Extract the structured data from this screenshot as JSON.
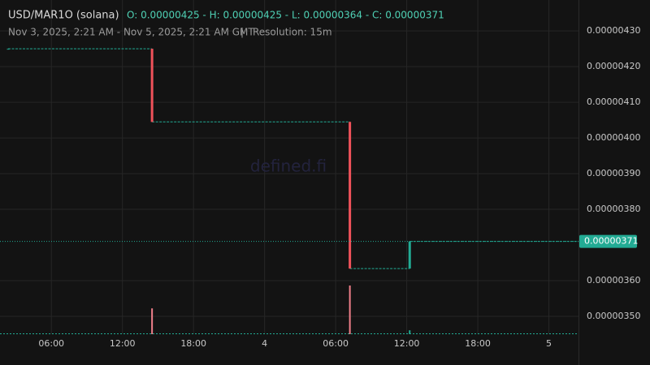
{
  "chart_data": {
    "type": "candlestick",
    "pair": "USD/MAR1O (solana)",
    "ohlc": "O: 0.00000425 - H: 0.00000425 - L: 0.00000364 - C: 0.00000371",
    "range": "Nov 3, 2025, 2:21 AM - Nov 5, 2025, 2:21 AM GMT",
    "separator": "|",
    "resolution": "Resolution: 15m",
    "watermark": "defined.fi",
    "last_price_label": "0.00000371",
    "up_color": "#22ab94",
    "down_color": "#f0525a",
    "x": [
      2.35,
      14.5,
      31.2,
      36.25
    ],
    "open": [
      4.25e-06,
      4.25e-06,
      4.045e-06,
      3.634e-06
    ],
    "high": [
      4.25e-06,
      4.25e-06,
      4.045e-06,
      3.71e-06
    ],
    "low": [
      4.25e-06,
      4.045e-06,
      3.634e-06,
      3.634e-06
    ],
    "close": [
      4.25e-06,
      4.045e-06,
      3.634e-06,
      3.71e-06
    ],
    "volume": [
      0,
      53,
      100,
      8
    ],
    "xlim": [
      2.35,
      50.5
    ],
    "ylim": [
      3.45e-06,
      4.364e-06
    ],
    "xticks": [
      {
        "value": 6,
        "label": "06:00"
      },
      {
        "value": 12,
        "label": "12:00"
      },
      {
        "value": 18,
        "label": "18:00"
      },
      {
        "value": 24,
        "label": "4"
      },
      {
        "value": 30,
        "label": "06:00"
      },
      {
        "value": 36,
        "label": "12:00"
      },
      {
        "value": 42,
        "label": "18:00"
      },
      {
        "value": 48,
        "label": "5"
      }
    ],
    "yticks": [
      {
        "value": 3.5e-06,
        "label": "0.00000350"
      },
      {
        "value": 3.6e-06,
        "label": "0.00000360"
      },
      {
        "value": 3.8e-06,
        "label": "0.00000380"
      },
      {
        "value": 3.9e-06,
        "label": "0.00000390"
      },
      {
        "value": 4e-06,
        "label": "0.00000400"
      },
      {
        "value": 4.1e-06,
        "label": "0.00000410"
      },
      {
        "value": 4.2e-06,
        "label": "0.00000420"
      },
      {
        "value": 4.3e-06,
        "label": "0.00000430"
      }
    ],
    "grid": true
  }
}
